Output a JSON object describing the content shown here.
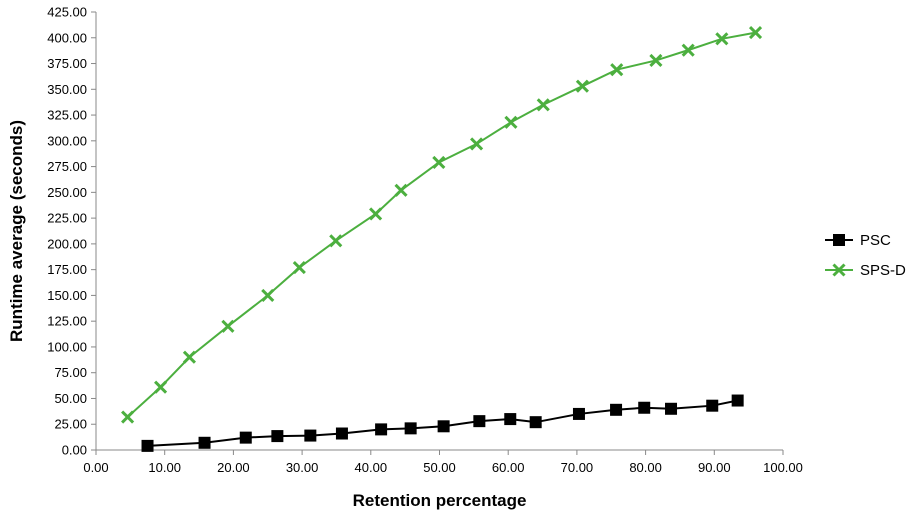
{
  "chart_data": {
    "type": "line",
    "title": "",
    "xlabel": "Retention percentage",
    "ylabel": "Runtime average (seconds)",
    "xlim": [
      0,
      100
    ],
    "ylim": [
      0,
      425
    ],
    "x_ticks": [
      0,
      10,
      20,
      30,
      40,
      50,
      60,
      70,
      80,
      90,
      100
    ],
    "y_ticks": [
      0,
      25,
      50,
      75,
      100,
      125,
      150,
      175,
      200,
      225,
      250,
      275,
      300,
      325,
      350,
      375,
      400,
      425
    ],
    "x_tick_labels": [
      "0.00",
      "10.00",
      "20.00",
      "30.00",
      "40.00",
      "50.00",
      "60.00",
      "70.00",
      "80.00",
      "90.00",
      "100.00"
    ],
    "y_tick_labels": [
      "0.00",
      "25.00",
      "50.00",
      "75.00",
      "100.00",
      "125.00",
      "150.00",
      "175.00",
      "200.00",
      "225.00",
      "250.00",
      "275.00",
      "300.00",
      "325.00",
      "350.00",
      "375.00",
      "400.00",
      "425.00"
    ],
    "grid": false,
    "legend_position": "right",
    "series": [
      {
        "name": "PSC",
        "color": "#000000",
        "marker": "square",
        "x": [
          7.5,
          15.8,
          21.8,
          26.4,
          31.2,
          35.8,
          41.5,
          45.8,
          50.6,
          55.8,
          60.3,
          64.0,
          70.3,
          75.7,
          79.8,
          83.7,
          89.7,
          93.4
        ],
        "y": [
          4,
          7,
          12,
          13.5,
          14,
          16,
          20,
          21,
          23,
          28,
          30,
          27,
          35,
          39,
          41,
          40,
          43,
          48
        ]
      },
      {
        "name": "SPS-D",
        "color": "#4CAF3F",
        "marker": "x",
        "x": [
          4.6,
          9.4,
          13.6,
          19.2,
          25.0,
          29.6,
          34.9,
          40.7,
          44.4,
          49.9,
          55.4,
          60.4,
          65.1,
          70.8,
          75.8,
          81.5,
          86.2,
          91.1,
          96.0
        ],
        "y": [
          32,
          61,
          90,
          120,
          150,
          177,
          203,
          229,
          252,
          279,
          297,
          318,
          335,
          353,
          369,
          378,
          388,
          399,
          405
        ]
      }
    ]
  }
}
